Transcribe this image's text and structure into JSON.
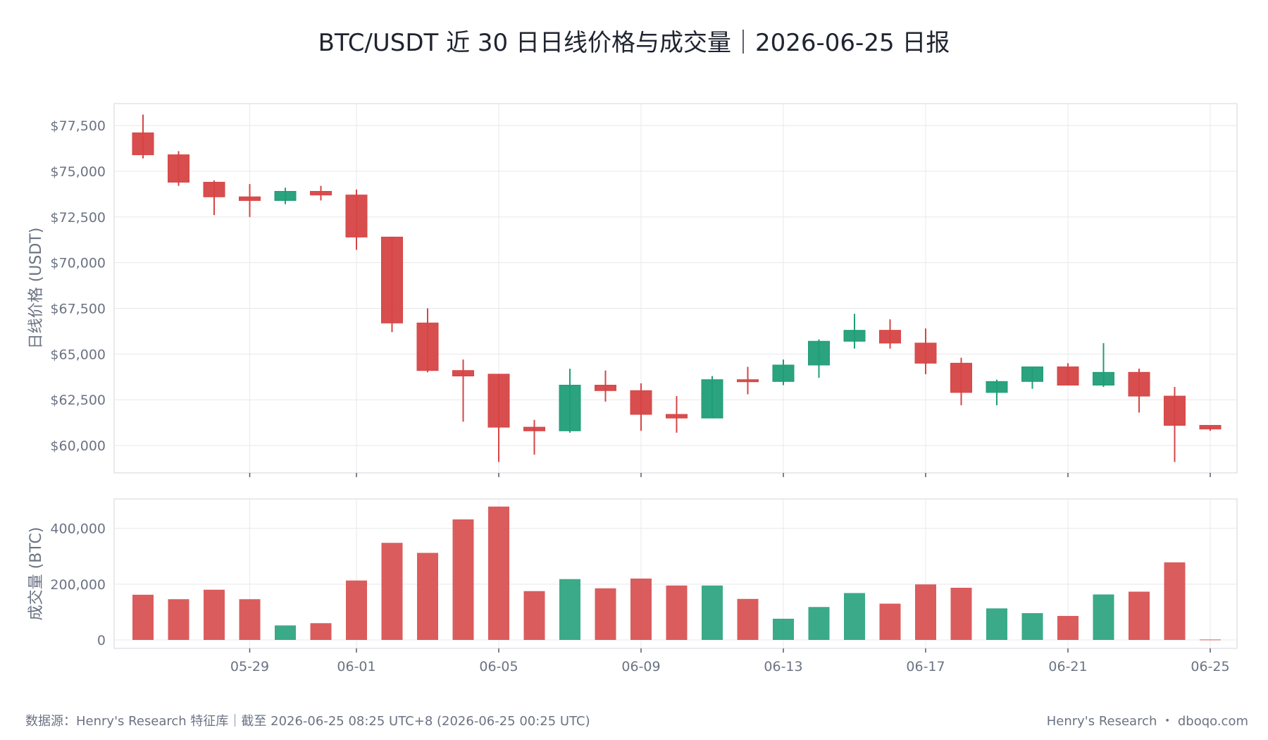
{
  "title": "BTC/USDT 近 30 日日线价格与成交量｜2026-06-25 日报",
  "colors": {
    "up": "#1f9e77",
    "down": "#d64545",
    "grid": "#e7e8ec",
    "text": "#6b7383"
  },
  "footer": {
    "source": "数据源：Henry's Research 特征库｜截至 2026-06-25 08:25 UTC+8 (2026-06-25 00:25 UTC)",
    "brand": "Henry's Research ・ dboqo.com"
  },
  "chart_data": [
    {
      "type": "candlestick",
      "ylabel": "日线价格 (USDT)",
      "ylim": [
        58500,
        78700
      ],
      "yticks": [
        "$60,000",
        "$62,500",
        "$65,000",
        "$67,500",
        "$70,000",
        "$72,500",
        "$75,000",
        "$77,500"
      ],
      "ytick_values": [
        60000,
        62500,
        65000,
        67500,
        70000,
        72500,
        75000,
        77500
      ],
      "xticks": [
        "05-29",
        "06-01",
        "06-05",
        "06-09",
        "06-13",
        "06-17",
        "06-21",
        "06-25"
      ],
      "xtick_index": [
        3,
        6,
        10,
        14,
        18,
        22,
        26,
        30
      ],
      "dates": [
        "05-26",
        "05-27",
        "05-28",
        "05-29",
        "05-30",
        "05-31",
        "06-01",
        "06-02",
        "06-03",
        "06-04",
        "06-05",
        "06-06",
        "06-07",
        "06-08",
        "06-09",
        "06-10",
        "06-11",
        "06-12",
        "06-13",
        "06-14",
        "06-15",
        "06-16",
        "06-17",
        "06-18",
        "06-19",
        "06-20",
        "06-21",
        "06-22",
        "06-23",
        "06-24",
        "06-25"
      ],
      "candles": [
        {
          "o": 77100,
          "h": 78100,
          "l": 75700,
          "c": 75900
        },
        {
          "o": 75900,
          "h": 76100,
          "l": 74200,
          "c": 74400
        },
        {
          "o": 74400,
          "h": 74500,
          "l": 72600,
          "c": 73600
        },
        {
          "o": 73600,
          "h": 74300,
          "l": 72500,
          "c": 73400
        },
        {
          "o": 73400,
          "h": 74100,
          "l": 73200,
          "c": 73900
        },
        {
          "o": 73900,
          "h": 74200,
          "l": 73400,
          "c": 73700
        },
        {
          "o": 73700,
          "h": 74000,
          "l": 70700,
          "c": 71400
        },
        {
          "o": 71400,
          "h": 71400,
          "l": 66200,
          "c": 66700
        },
        {
          "o": 66700,
          "h": 67500,
          "l": 64000,
          "c": 64100
        },
        {
          "o": 64100,
          "h": 64700,
          "l": 61300,
          "c": 63800
        },
        {
          "o": 63900,
          "h": 63900,
          "l": 59100,
          "c": 61000
        },
        {
          "o": 61000,
          "h": 61400,
          "l": 59500,
          "c": 60800
        },
        {
          "o": 60800,
          "h": 64200,
          "l": 60700,
          "c": 63300
        },
        {
          "o": 63300,
          "h": 64100,
          "l": 62400,
          "c": 63000
        },
        {
          "o": 63000,
          "h": 63400,
          "l": 60800,
          "c": 61700
        },
        {
          "o": 61700,
          "h": 62700,
          "l": 60700,
          "c": 61500
        },
        {
          "o": 61500,
          "h": 63800,
          "l": 61500,
          "c": 63600
        },
        {
          "o": 63600,
          "h": 64300,
          "l": 62800,
          "c": 63500
        },
        {
          "o": 63500,
          "h": 64700,
          "l": 63300,
          "c": 64400
        },
        {
          "o": 64400,
          "h": 65800,
          "l": 63700,
          "c": 65700
        },
        {
          "o": 65700,
          "h": 67200,
          "l": 65300,
          "c": 66300
        },
        {
          "o": 66300,
          "h": 66900,
          "l": 65300,
          "c": 65600
        },
        {
          "o": 65600,
          "h": 66400,
          "l": 63900,
          "c": 64500
        },
        {
          "o": 64500,
          "h": 64800,
          "l": 62200,
          "c": 62900
        },
        {
          "o": 62900,
          "h": 63600,
          "l": 62200,
          "c": 63500
        },
        {
          "o": 63500,
          "h": 64300,
          "l": 63100,
          "c": 64300
        },
        {
          "o": 64300,
          "h": 64500,
          "l": 63300,
          "c": 63300
        },
        {
          "o": 63300,
          "h": 65600,
          "l": 63200,
          "c": 64000
        },
        {
          "o": 64000,
          "h": 64200,
          "l": 61800,
          "c": 62700
        },
        {
          "o": 62700,
          "h": 63200,
          "l": 59100,
          "c": 61100
        },
        {
          "o": 61100,
          "h": 61100,
          "l": 60800,
          "c": 60900
        }
      ]
    },
    {
      "type": "bar",
      "ylabel": "成交量 (BTC)",
      "ylim": [
        0,
        480000
      ],
      "yticks": [
        "0",
        "200,000",
        "400,000"
      ],
      "ytick_values": [
        0,
        200000,
        400000
      ],
      "values": [
        162000,
        146000,
        180000,
        146000,
        52000,
        60000,
        213000,
        348000,
        312000,
        432000,
        478000,
        175000,
        218000,
        185000,
        220000,
        195000,
        195000,
        147000,
        76000,
        118000,
        168000,
        130000,
        199000,
        187000,
        113000,
        96000,
        86000,
        163000,
        173000,
        278000,
        1500
      ],
      "up": [
        false,
        false,
        false,
        false,
        true,
        false,
        false,
        false,
        false,
        false,
        false,
        false,
        true,
        false,
        false,
        false,
        true,
        false,
        true,
        true,
        true,
        false,
        false,
        false,
        true,
        true,
        false,
        true,
        false,
        false,
        false
      ]
    }
  ]
}
